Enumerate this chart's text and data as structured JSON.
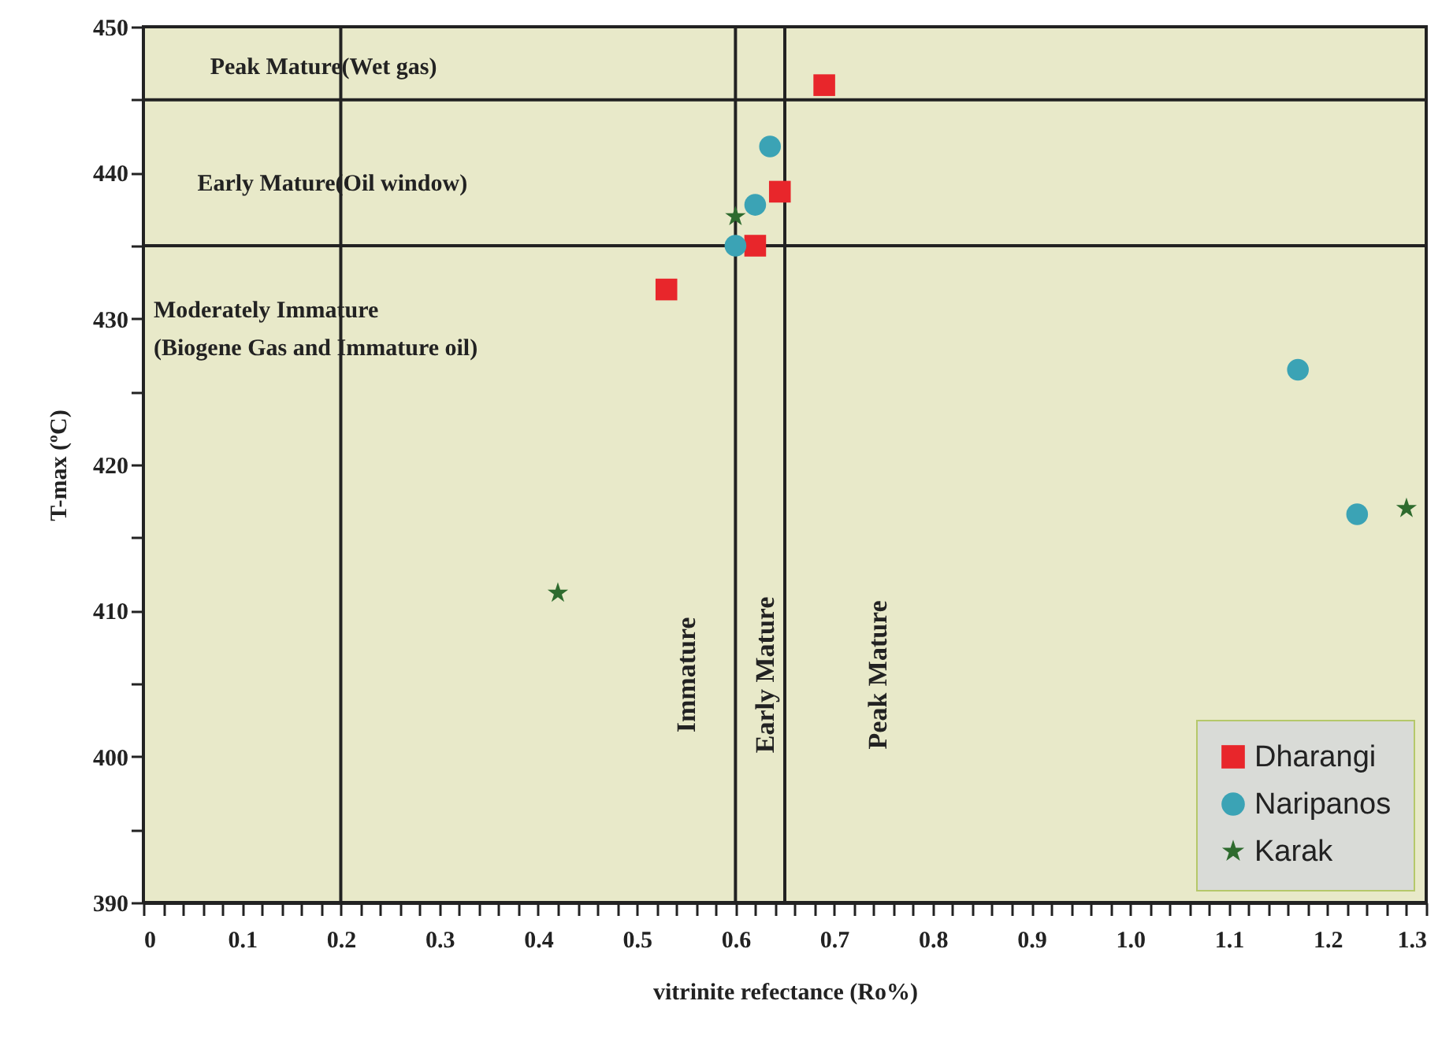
{
  "chart_data": {
    "type": "scatter",
    "xlabel": "vitrinite refectance (Ro%)",
    "ylabel": "T-max (ºC)",
    "xlim": [
      0,
      1.3
    ],
    "ylim": [
      390,
      450
    ],
    "xticks": [
      0,
      {
        "value": 0.02,
        "label": null
      },
      {
        "value": 0.04,
        "label": null
      },
      {
        "value": 0.06,
        "label": null
      },
      {
        "value": 0.08,
        "label": null
      },
      0.1,
      {
        "value": 0.12,
        "label": null
      },
      {
        "value": 0.14,
        "label": null
      },
      {
        "value": 0.16,
        "label": null
      },
      {
        "value": 0.18,
        "label": null
      },
      0.2,
      {
        "value": 0.22,
        "label": null
      },
      {
        "value": 0.24,
        "label": null
      },
      {
        "value": 0.26,
        "label": null
      },
      {
        "value": 0.28,
        "label": null
      },
      0.3,
      {
        "value": 0.32,
        "label": null
      },
      {
        "value": 0.34,
        "label": null
      },
      {
        "value": 0.36,
        "label": null
      },
      {
        "value": 0.38,
        "label": null
      },
      0.4,
      {
        "value": 0.42,
        "label": null
      },
      {
        "value": 0.44,
        "label": null
      },
      {
        "value": 0.46,
        "label": null
      },
      {
        "value": 0.48,
        "label": null
      },
      0.5,
      {
        "value": 0.52,
        "label": null
      },
      {
        "value": 0.54,
        "label": null
      },
      {
        "value": 0.56,
        "label": null
      },
      {
        "value": 0.58,
        "label": null
      },
      0.6,
      {
        "value": 0.62,
        "label": null
      },
      {
        "value": 0.64,
        "label": null
      },
      {
        "value": 0.66,
        "label": null
      },
      {
        "value": 0.68,
        "label": null
      },
      0.7,
      {
        "value": 0.72,
        "label": null
      },
      {
        "value": 0.74,
        "label": null
      },
      {
        "value": 0.76,
        "label": null
      },
      {
        "value": 0.78,
        "label": null
      },
      0.8,
      {
        "value": 0.82,
        "label": null
      },
      {
        "value": 0.84,
        "label": null
      },
      {
        "value": 0.86,
        "label": null
      },
      {
        "value": 0.88,
        "label": null
      },
      0.9,
      {
        "value": 0.92,
        "label": null
      },
      {
        "value": 0.94,
        "label": null
      },
      {
        "value": 0.96,
        "label": null
      },
      {
        "value": 0.98,
        "label": null
      },
      {
        "value": 1,
        "label": "1.0"
      },
      {
        "value": 1.02,
        "label": null
      },
      {
        "value": 1.04,
        "label": null
      },
      {
        "value": 1.06,
        "label": null
      },
      {
        "value": 1.08,
        "label": null
      },
      1.1,
      {
        "value": 1.12,
        "label": null
      },
      {
        "value": 1.14,
        "label": null
      },
      {
        "value": 1.16,
        "label": null
      },
      {
        "value": 1.18,
        "label": null
      },
      1.2,
      {
        "value": 1.22,
        "label": null
      },
      {
        "value": 1.24,
        "label": null
      },
      {
        "value": 1.26,
        "label": null
      },
      {
        "value": 1.28,
        "label": null
      },
      1.3
    ],
    "yticks": [
      390,
      {
        "value": 395,
        "label": null
      },
      400,
      {
        "value": 405,
        "label": null
      },
      410,
      {
        "value": 415,
        "label": null
      },
      420,
      {
        "value": 425,
        "label": null
      },
      430,
      {
        "value": 435,
        "label": null
      },
      440,
      {
        "value": 445,
        "label": null
      },
      450
    ],
    "legend": "bottom right",
    "series": [
      {
        "name": "Dharangi",
        "color": "#e8262b",
        "marker": "square",
        "x": [
          0.53,
          0.62,
          0.645,
          0.69
        ],
        "values": [
          432,
          435,
          438.7,
          446
        ]
      },
      {
        "name": "Naripanos",
        "color": "#3ba3b5",
        "marker": "circle",
        "x": [
          0.6,
          0.62,
          0.635,
          1.17,
          1.23
        ],
        "values": [
          435,
          437.8,
          441.8,
          426.5,
          416.6
        ]
      },
      {
        "name": "Karak",
        "color": "#2e6b2e",
        "marker": "star",
        "x": [
          0.6,
          0.42,
          1.28
        ],
        "values": [
          437,
          411.2,
          417
        ]
      }
    ],
    "ref_lines": [
      {
        "axis": "x",
        "value": 0.2
      },
      {
        "axis": "x",
        "value": 0.6
      },
      {
        "axis": "x",
        "value": 0.65
      },
      {
        "axis": "y",
        "value": 445
      },
      {
        "axis": "y",
        "value": 435
      }
    ],
    "annotations": [
      "Peak Mature(Wet gas)",
      "Early Mature(Oil window)",
      "Moderately Immature\n(Biogene Gas and Immature oil)",
      "Immature",
      "Early Mature",
      "Peak Mature"
    ]
  }
}
